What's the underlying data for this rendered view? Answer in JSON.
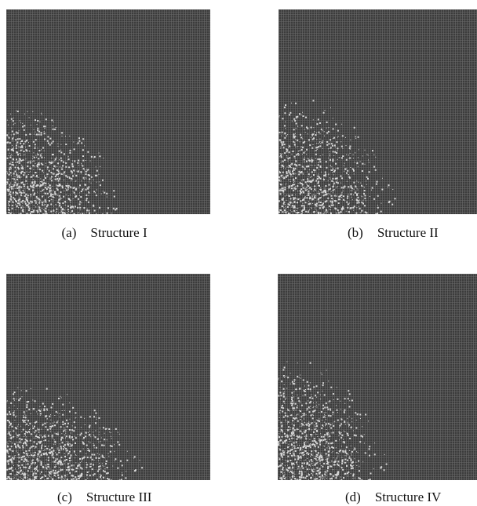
{
  "panels": [
    {
      "label": "(a)",
      "caption": "Structure I"
    },
    {
      "label": "(b)",
      "caption": "Structure II"
    },
    {
      "label": "(c)",
      "caption": "Structure III"
    },
    {
      "label": "(d)",
      "caption": "Structure IV"
    }
  ]
}
